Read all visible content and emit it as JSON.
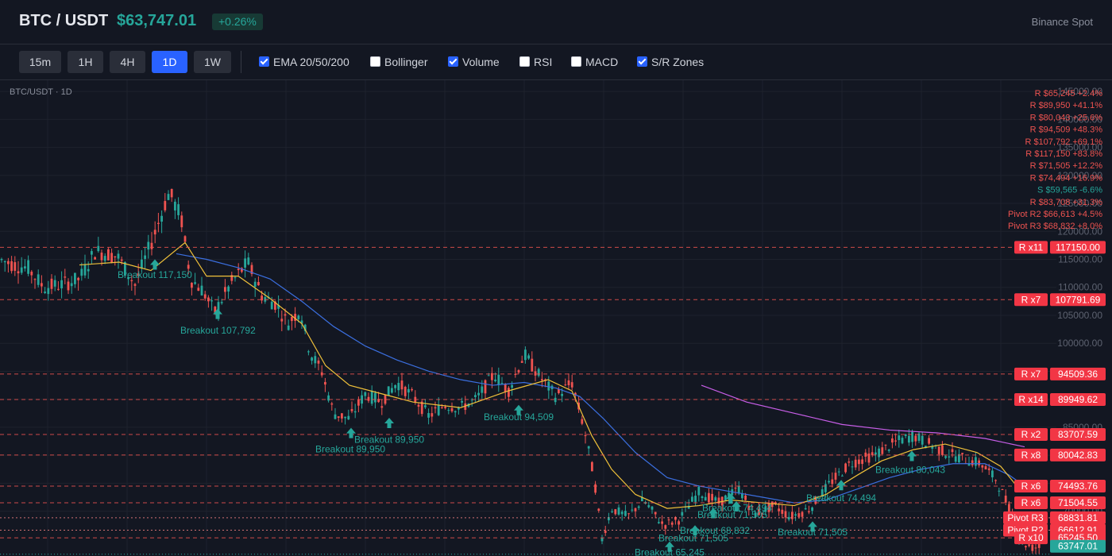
{
  "header": {
    "pair": "BTC / USDT",
    "price": "$63,747.01",
    "change": "+0.26%",
    "exchange": "Binance Spot"
  },
  "toolbar": {
    "timeframes": [
      {
        "label": "15m",
        "active": false
      },
      {
        "label": "1H",
        "active": false
      },
      {
        "label": "4H",
        "active": false
      },
      {
        "label": "1D",
        "active": true
      },
      {
        "label": "1W",
        "active": false
      }
    ],
    "indicators": [
      {
        "label": "EMA 20/50/200",
        "checked": true
      },
      {
        "label": "Bollinger",
        "checked": false
      },
      {
        "label": "Volume",
        "checked": true
      },
      {
        "label": "RSI",
        "checked": false
      },
      {
        "label": "MACD",
        "checked": false
      },
      {
        "label": "S/R Zones",
        "checked": true
      }
    ]
  },
  "chart_caption": "BTC/USDT · 1D",
  "colors": {
    "up": "#26a69a",
    "down": "#ef5350",
    "ema20": "#f0c13a",
    "ema50": "#3b6fe0",
    "ema200": "#c85ee8",
    "resistance": "#ef5350",
    "pivot": "#f08080",
    "support": "#26a69a"
  },
  "chart_data": {
    "type": "candlestick",
    "y_range": [
      62000,
      147000
    ],
    "price_ticks": [
      "145000.00",
      "140000.00",
      "135000.00",
      "130000.00",
      "125000.00",
      "120000.00",
      "115000.00",
      "110000.00",
      "105000.00",
      "100000.00",
      "95000.00",
      "90000.00",
      "85000.00",
      "80000.00",
      "75000.00",
      "70000.00"
    ],
    "price_path": [
      [
        0,
        115000
      ],
      [
        18,
        114000
      ],
      [
        35,
        113500
      ],
      [
        55,
        110000
      ],
      [
        78,
        110500
      ],
      [
        100,
        111500
      ],
      [
        120,
        116500
      ],
      [
        148,
        115500
      ],
      [
        170,
        110500
      ],
      [
        192,
        118500
      ],
      [
        213,
        127000
      ],
      [
        228,
        122500
      ],
      [
        240,
        111500
      ],
      [
        255,
        109500
      ],
      [
        270,
        105500
      ],
      [
        290,
        110500
      ],
      [
        312,
        114500
      ],
      [
        330,
        108500
      ],
      [
        348,
        107000
      ],
      [
        362,
        103500
      ],
      [
        378,
        106000
      ],
      [
        390,
        98500
      ],
      [
        405,
        95000
      ],
      [
        420,
        87500
      ],
      [
        440,
        86500
      ],
      [
        460,
        91000
      ],
      [
        480,
        89500
      ],
      [
        500,
        93000
      ],
      [
        520,
        90500
      ],
      [
        540,
        87000
      ],
      [
        560,
        89000
      ],
      [
        580,
        88500
      ],
      [
        600,
        90000
      ],
      [
        622,
        94500
      ],
      [
        640,
        91500
      ],
      [
        660,
        98000
      ],
      [
        680,
        94000
      ],
      [
        700,
        90500
      ],
      [
        720,
        93000
      ],
      [
        735,
        85000
      ],
      [
        748,
        76000
      ],
      [
        758,
        65000
      ],
      [
        770,
        70500
      ],
      [
        790,
        69000
      ],
      [
        810,
        72000
      ],
      [
        835,
        67500
      ],
      [
        855,
        68500
      ],
      [
        880,
        73500
      ],
      [
        905,
        71500
      ],
      [
        930,
        74000
      ],
      [
        950,
        69500
      ],
      [
        975,
        71000
      ],
      [
        995,
        69000
      ],
      [
        1020,
        70500
      ],
      [
        1045,
        75000
      ],
      [
        1070,
        78500
      ],
      [
        1100,
        80000
      ],
      [
        1130,
        82500
      ],
      [
        1150,
        83500
      ],
      [
        1170,
        82000
      ],
      [
        1190,
        80500
      ],
      [
        1210,
        79500
      ],
      [
        1235,
        78500
      ],
      [
        1255,
        75500
      ],
      [
        1275,
        69000
      ],
      [
        1285,
        64500
      ],
      [
        1300,
        63500
      ],
      [
        1310,
        63700
      ]
    ],
    "ema20": [
      [
        100,
        114000
      ],
      [
        150,
        114500
      ],
      [
        190,
        113000
      ],
      [
        233,
        118000
      ],
      [
        260,
        112000
      ],
      [
        300,
        112000
      ],
      [
        340,
        108000
      ],
      [
        380,
        103500
      ],
      [
        410,
        96000
      ],
      [
        440,
        92500
      ],
      [
        480,
        91000
      ],
      [
        520,
        89500
      ],
      [
        580,
        88500
      ],
      [
        640,
        91500
      ],
      [
        690,
        93500
      ],
      [
        720,
        91500
      ],
      [
        745,
        83500
      ],
      [
        770,
        77500
      ],
      [
        800,
        73000
      ],
      [
        840,
        70500
      ],
      [
        880,
        71000
      ],
      [
        920,
        72000
      ],
      [
        960,
        71500
      ],
      [
        1000,
        71000
      ],
      [
        1040,
        73000
      ],
      [
        1080,
        76500
      ],
      [
        1110,
        79000
      ],
      [
        1150,
        81000
      ],
      [
        1190,
        82000
      ],
      [
        1230,
        80500
      ],
      [
        1260,
        78000
      ],
      [
        1280,
        74500
      ]
    ],
    "ema50": [
      [
        222,
        116000
      ],
      [
        260,
        115000
      ],
      [
        300,
        113500
      ],
      [
        340,
        111500
      ],
      [
        380,
        107500
      ],
      [
        420,
        103000
      ],
      [
        460,
        99500
      ],
      [
        500,
        97000
      ],
      [
        540,
        95000
      ],
      [
        580,
        93500
      ],
      [
        620,
        92500
      ],
      [
        660,
        93000
      ],
      [
        700,
        92000
      ],
      [
        730,
        90500
      ],
      [
        760,
        86500
      ],
      [
        800,
        80500
      ],
      [
        840,
        76000
      ],
      [
        880,
        74500
      ],
      [
        920,
        73500
      ],
      [
        960,
        72500
      ],
      [
        1000,
        71500
      ],
      [
        1040,
        72000
      ],
      [
        1080,
        74000
      ],
      [
        1120,
        76000
      ],
      [
        1160,
        77500
      ],
      [
        1200,
        78500
      ],
      [
        1240,
        78500
      ],
      [
        1270,
        76500
      ],
      [
        1290,
        74500
      ]
    ],
    "ema200": [
      [
        883,
        92500
      ],
      [
        940,
        89500
      ],
      [
        1000,
        87500
      ],
      [
        1060,
        85500
      ],
      [
        1120,
        84500
      ],
      [
        1180,
        84000
      ],
      [
        1240,
        83000
      ],
      [
        1290,
        81500
      ]
    ],
    "levels": [
      {
        "price": 117150,
        "tag": "R x11",
        "label": "117150.00",
        "kind": "R"
      },
      {
        "price": 107791.69,
        "tag": "R x7",
        "label": "107791.69",
        "kind": "R"
      },
      {
        "price": 94509.36,
        "tag": "R x7",
        "label": "94509.36",
        "kind": "R"
      },
      {
        "price": 89949.62,
        "tag": "R x14",
        "label": "89949.62",
        "kind": "R"
      },
      {
        "price": 83707.59,
        "tag": "R x2",
        "label": "83707.59",
        "kind": "R"
      },
      {
        "price": 80042.83,
        "tag": "R x8",
        "label": "80042.83",
        "kind": "R"
      },
      {
        "price": 74493.76,
        "tag": "R x6",
        "label": "74493.76",
        "kind": "R"
      },
      {
        "price": 71504.55,
        "tag": "R x6",
        "label": "71504.55",
        "kind": "R"
      },
      {
        "price": 68831.81,
        "tag": "Pivot R3",
        "label": "68831.81",
        "kind": "P"
      },
      {
        "price": 66612.91,
        "tag": "Pivot R2",
        "label": "66612.91",
        "kind": "P"
      },
      {
        "price": 65245.5,
        "tag": "R x10",
        "label": "65245.50",
        "kind": "R"
      }
    ],
    "current_price": {
      "price": 63747.01,
      "label": "63747.01"
    },
    "zone_list": [
      {
        "text": "R $65,245 +2.4%",
        "kind": "R"
      },
      {
        "text": "R $89,950 +41.1%",
        "kind": "R"
      },
      {
        "text": "R $80,043 +25.6%",
        "kind": "R"
      },
      {
        "text": "R $94,509 +48.3%",
        "kind": "R"
      },
      {
        "text": "R $107,792 +69.1%",
        "kind": "R"
      },
      {
        "text": "R $117,150 +83.8%",
        "kind": "R"
      },
      {
        "text": "R $71,505 +12.2%",
        "kind": "R"
      },
      {
        "text": "R $74,494 +16.9%",
        "kind": "R"
      },
      {
        "text": "S $59,565 -6.6%",
        "kind": "S"
      },
      {
        "text": "R $83,708 +31.3%",
        "kind": "R"
      },
      {
        "text": "Pivot R2 $66,613 +4.5%",
        "kind": "R"
      },
      {
        "text": "Pivot R3 $68,832 +8.0%",
        "kind": "R"
      }
    ],
    "signals": [
      {
        "x": 195,
        "price": 114000,
        "label": "Breakout 117,150",
        "lx": 148,
        "lprice": 111700
      },
      {
        "x": 274,
        "price": 105200,
        "label": "Breakout 107,792",
        "lx": 227,
        "lprice": 101700
      },
      {
        "x": 442,
        "price": 83900,
        "label": "Breakout 89,950",
        "lx": 397,
        "lprice": 80500
      },
      {
        "x": 490,
        "price": 85700,
        "label": "Breakout 89,950",
        "lx": 446,
        "lprice": 82200
      },
      {
        "x": 653,
        "price": 88000,
        "label": "Breakout 94,509",
        "lx": 609,
        "lprice": 86300
      },
      {
        "x": 843,
        "price": 63600,
        "label": "Breakout 65,245",
        "lx": 799,
        "lprice": 62100
      },
      {
        "x": 875,
        "price": 66500,
        "label": "Breakout 71,505",
        "lx": 829,
        "lprice": 64600
      },
      {
        "x": 898,
        "price": 69600,
        "label": "Breakout 68,832",
        "lx": 856,
        "lprice": 66000
      },
      {
        "x": 920,
        "price": 72200,
        "label": "Breakout 71,505",
        "lx": 878,
        "lprice": 68800
      },
      {
        "x": 927,
        "price": 70800,
        "label": "Breakout 74,494",
        "lx": 884,
        "lprice": 70000
      },
      {
        "x": 1023,
        "price": 67200,
        "label": "Breakout 71,505",
        "lx": 979,
        "lprice": 65700
      },
      {
        "x": 1059,
        "price": 74600,
        "label": "Breakout 74,494",
        "lx": 1015,
        "lprice": 71800
      },
      {
        "x": 1148,
        "price": 79800,
        "label": "Breakout 80,043",
        "lx": 1102,
        "lprice": 76800
      }
    ]
  }
}
